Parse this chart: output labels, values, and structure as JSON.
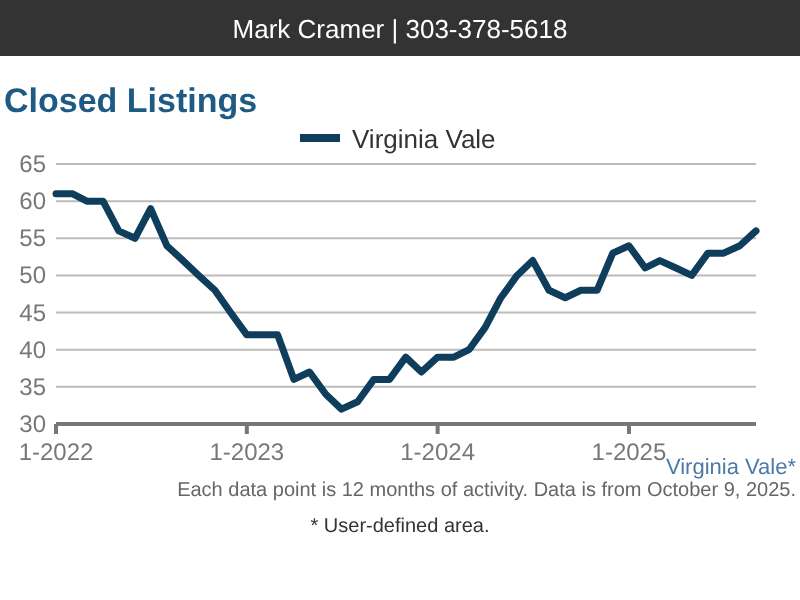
{
  "chart_data": {
    "type": "line",
    "subtitle": "Mark Cramer | 303-378-5618",
    "title": "Closed Listings",
    "x": [
      "2022-01",
      "2022-02",
      "2022-03",
      "2022-04",
      "2022-05",
      "2022-06",
      "2022-07",
      "2022-08",
      "2022-09",
      "2022-10",
      "2022-11",
      "2022-12",
      "2023-01",
      "2023-02",
      "2023-03",
      "2023-04",
      "2023-05",
      "2023-06",
      "2023-07",
      "2023-08",
      "2023-09",
      "2023-10",
      "2023-11",
      "2023-12",
      "2024-01",
      "2024-02",
      "2024-03",
      "2024-04",
      "2024-05",
      "2024-06",
      "2024-07",
      "2024-08",
      "2024-09",
      "2024-10",
      "2024-11",
      "2024-12",
      "2025-01",
      "2025-02",
      "2025-03",
      "2025-04",
      "2025-05",
      "2025-06",
      "2025-07",
      "2025-08",
      "2025-09"
    ],
    "series": [
      {
        "name": "Virginia Vale",
        "color": "#0f3d5c",
        "values": [
          61,
          61,
          60,
          60,
          56,
          55,
          59,
          54,
          52,
          50,
          48,
          45,
          42,
          42,
          42,
          36,
          37,
          34,
          32,
          33,
          36,
          36,
          39,
          37,
          39,
          39,
          40,
          43,
          47,
          50,
          52,
          48,
          47,
          48,
          48,
          53,
          54,
          51,
          52,
          51,
          50,
          53,
          53,
          54,
          56
        ]
      }
    ],
    "xlim": [
      "2022-01",
      "2025-09"
    ],
    "xticks": [
      {
        "value": "2022-01",
        "label": "1-2022"
      },
      {
        "value": "2023-01",
        "label": "1-2023"
      },
      {
        "value": "2024-01",
        "label": "1-2024"
      },
      {
        "value": "2025-01",
        "label": "1-2025"
      }
    ],
    "ylim": [
      30,
      65
    ],
    "yticks": [
      30,
      35,
      40,
      45,
      50,
      55,
      60,
      65
    ],
    "grid": "y",
    "legend": "top",
    "line_style": "solid",
    "annotations": [
      "Virginia Vale*",
      "Each data point is 12 months of activity. Data is from October 9, 2025.",
      "* User-defined area."
    ]
  }
}
